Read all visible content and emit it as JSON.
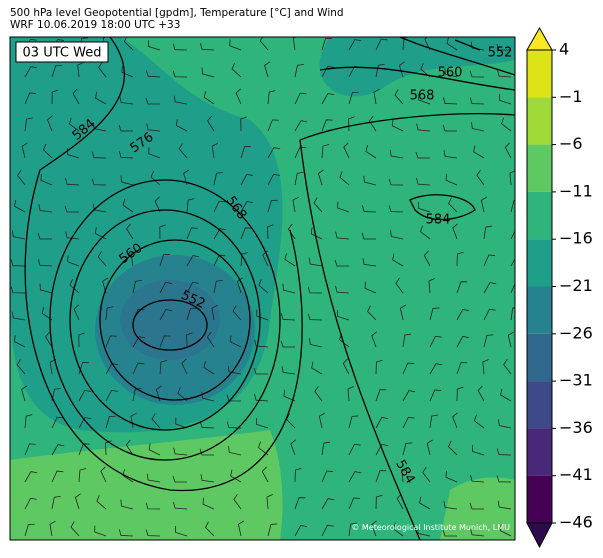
{
  "header": {
    "title": "500 hPa level Geopotential [gpdm], Temperature [°C] and Wind",
    "subtitle": "WRF 10.06.2019 18:00 UTC +33"
  },
  "map": {
    "time_label": "03 UTC Wed",
    "contour_labels": [
      "552",
      "560",
      "568",
      "584",
      "576",
      "568",
      "560",
      "552",
      "584",
      "584"
    ],
    "credit": "© Meteorological Institute Munich, LMU"
  },
  "colorbar": {
    "ticks": [
      "4",
      "−1",
      "−6",
      "−11",
      "−16",
      "−21",
      "−26",
      "−31",
      "−36",
      "−41",
      "−46"
    ],
    "colors": [
      "#fde725",
      "#dde318",
      "#a0da39",
      "#5ec962",
      "#2fb47c",
      "#1f9e89",
      "#26828e",
      "#31688e",
      "#3e4989",
      "#482878",
      "#440154",
      "#2d0a4e"
    ]
  }
}
